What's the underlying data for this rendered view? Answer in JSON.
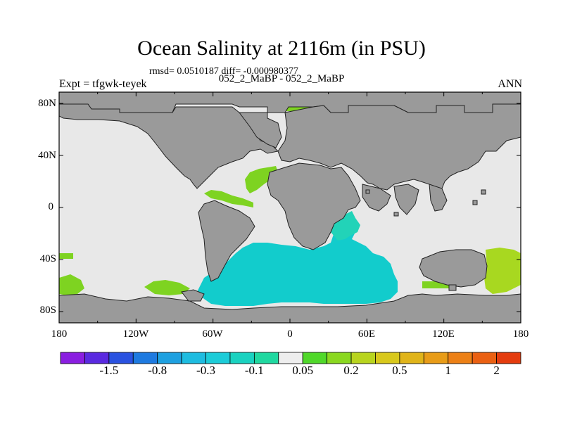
{
  "title": "Ocean Salinity at 2116m (in PSU)",
  "stats": "rmsd= 0.0510187 diff= -0.000980377",
  "subtitle": "052_2_MaBP - 052_2_MaBP",
  "left_label": "Expt = tfgwk-teyek",
  "right_label": "ANN",
  "colors": {
    "land": "#9a9a9a",
    "ocean_neutral": "#e8e8e8",
    "positive_small": "#7ed321",
    "positive_mid": "#a8d820",
    "negative_small": "#22d3b8",
    "negative_mid": "#12cccc"
  },
  "lat_ticks": [
    "80N",
    "40N",
    "0",
    "40S",
    "80S"
  ],
  "lon_ticks": [
    "180",
    "120W",
    "60W",
    "0",
    "60E",
    "120E",
    "180"
  ],
  "colorbar": {
    "colors": [
      "#8a1ee0",
      "#5a2ae0",
      "#2a52e0",
      "#1e7ae0",
      "#1ea0e0",
      "#1ebce0",
      "#1cccd8",
      "#1ad2c0",
      "#20d8a0",
      "#eeeeee",
      "#50d82a",
      "#8ad820",
      "#b8d41e",
      "#d8c81c",
      "#e0b41a",
      "#e89c18",
      "#ec8016",
      "#ea6012",
      "#e43c0e"
    ],
    "labels": [
      "-1.5",
      "-0.8",
      "-0.3",
      "-0.1",
      "0.05",
      "0.2",
      "0.5",
      "1",
      "2"
    ]
  }
}
